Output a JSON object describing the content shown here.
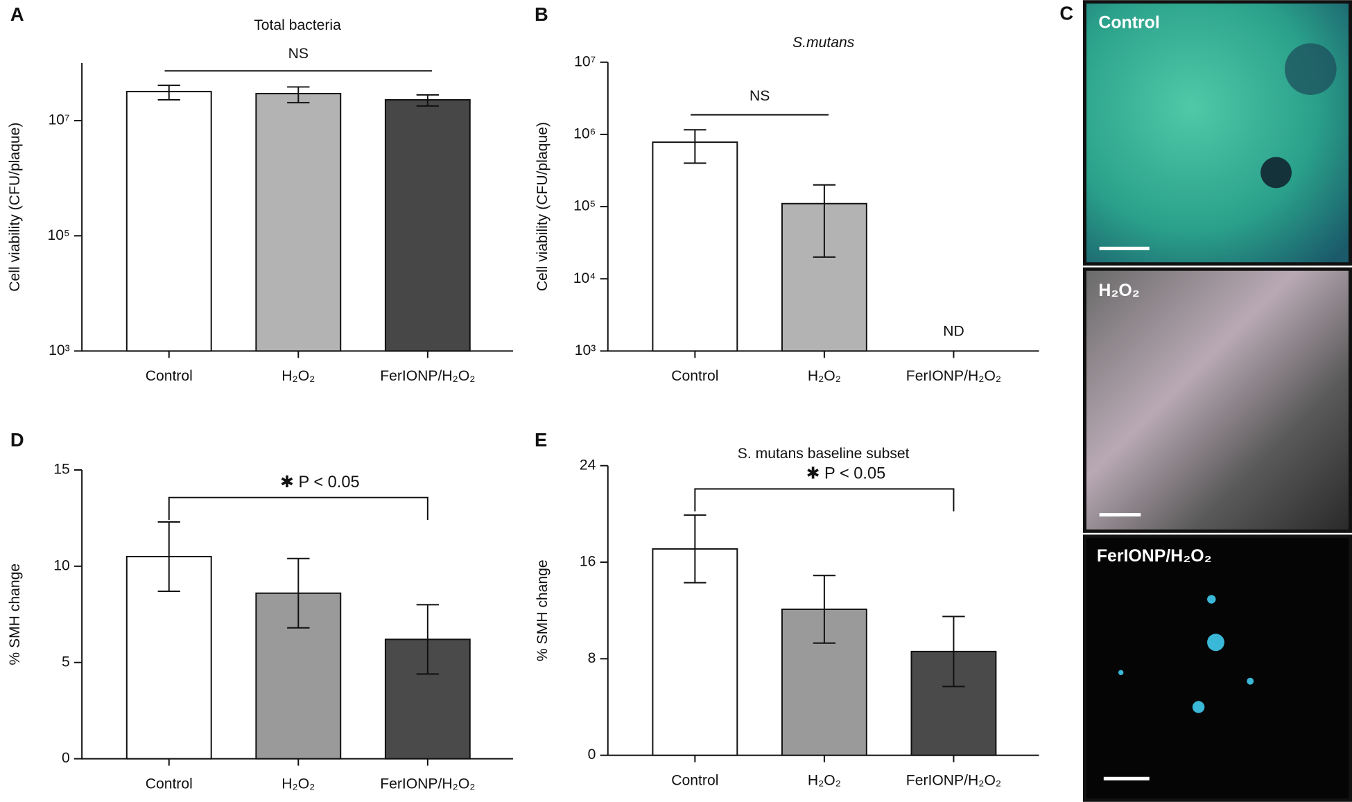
{
  "chart_data": [
    {
      "type": "bar",
      "panel": "A",
      "title": "Total bacteria",
      "ylabel": "Cell viability (CFU/plaque)",
      "yscale": "log",
      "categories": [
        "Control",
        "H₂O₂",
        "FerIONP/H₂O₂"
      ],
      "values": [
        32000000,
        29500000,
        23000000
      ],
      "errors": [
        9000000,
        9000000,
        5000000
      ],
      "colors": [
        "#ffffff",
        "#b3b3b3",
        "#474747"
      ],
      "ylim": [
        1000,
        100000000
      ],
      "yticks": [
        {
          "value": 1000,
          "label": "10³"
        },
        {
          "value": 100000,
          "label": "10⁵"
        },
        {
          "value": 10000000,
          "label": "10⁷"
        }
      ],
      "annotations": [
        {
          "text": "NS",
          "span": [
            0,
            2
          ]
        }
      ]
    },
    {
      "type": "bar",
      "panel": "B",
      "title": "S.mutans",
      "ylabel": "Cell viability (CFU/plaque)",
      "yscale": "log",
      "categories": [
        "Control",
        "H₂O₂",
        "FerIONP/H₂O₂"
      ],
      "values": [
        780000,
        110000,
        null
      ],
      "errors": [
        380000,
        90000,
        null
      ],
      "colors": [
        "#ffffff",
        "#b3b3b3",
        "#474747"
      ],
      "ylim": [
        1000,
        10000000
      ],
      "yticks": [
        {
          "value": 1000,
          "label": "10³"
        },
        {
          "value": 10000,
          "label": "10⁴"
        },
        {
          "value": 100000,
          "label": "10⁵"
        },
        {
          "value": 1000000,
          "label": "10⁶"
        },
        {
          "value": 10000000,
          "label": "10⁷"
        }
      ],
      "annotations": [
        {
          "text": "NS",
          "span": [
            0,
            1
          ]
        },
        {
          "text": "ND",
          "at": 2
        }
      ]
    },
    {
      "type": "bar",
      "panel": "D",
      "ylabel": "% SMH change",
      "yscale": "linear",
      "categories": [
        "Control",
        "H₂O₂",
        "FerIONP/H₂O₂"
      ],
      "values": [
        10.5,
        8.6,
        6.2
      ],
      "errors": [
        1.8,
        1.8,
        1.8
      ],
      "colors": [
        "#ffffff",
        "#9a9a9a",
        "#4a4a4a"
      ],
      "ylim": [
        0,
        15
      ],
      "yticks": [
        0,
        5,
        10,
        15
      ],
      "annotations": [
        {
          "text": "✱ P < 0.05",
          "span": [
            0,
            2
          ]
        }
      ]
    },
    {
      "type": "bar",
      "panel": "E",
      "title": "S. mutans baseline subset",
      "ylabel": "% SMH change",
      "yscale": "linear",
      "categories": [
        "Control",
        "H₂O₂",
        "FerIONP/H₂O₂"
      ],
      "values": [
        17.1,
        12.1,
        8.6
      ],
      "errors": [
        2.8,
        2.8,
        2.9
      ],
      "colors": [
        "#ffffff",
        "#9a9a9a",
        "#4a4a4a"
      ],
      "ylim": [
        0,
        24
      ],
      "yticks": [
        0,
        8,
        16,
        24
      ],
      "annotations": [
        {
          "text": "✱ P < 0.05",
          "span": [
            0,
            2
          ]
        }
      ]
    }
  ],
  "images": {
    "panel": "C",
    "labels": [
      "Control",
      "H₂O₂",
      "FerIONP/H₂O₂"
    ]
  }
}
